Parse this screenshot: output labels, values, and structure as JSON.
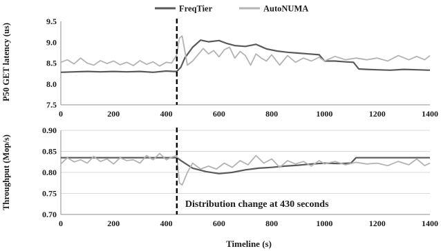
{
  "chart_data": [
    {
      "type": "line",
      "ylabel": "P50 GET latency (us)",
      "xlabel": "",
      "xlim": [
        0,
        1400
      ],
      "ylim": [
        7.5,
        9.5
      ],
      "x_ticks": [
        "0",
        "200",
        "400",
        "600",
        "800",
        "1000",
        "1200",
        "1400"
      ],
      "y_ticks": [
        "7.5",
        "8.0",
        "8.5",
        "9.0",
        "9.5"
      ],
      "grid": false,
      "legend_position": "top",
      "marker_x": 440,
      "series": [
        {
          "name": "FreqTier",
          "color": "#595959",
          "x": [
            0,
            50,
            100,
            150,
            200,
            250,
            300,
            350,
            400,
            430,
            440,
            455,
            470,
            500,
            530,
            560,
            600,
            630,
            660,
            700,
            740,
            780,
            820,
            860,
            900,
            940,
            980,
            1000,
            1040,
            1080,
            1110,
            1130,
            1160,
            1200,
            1250,
            1300,
            1350,
            1400
          ],
          "values": [
            8.28,
            8.29,
            8.3,
            8.29,
            8.3,
            8.29,
            8.3,
            8.28,
            8.31,
            8.3,
            8.3,
            8.4,
            8.62,
            8.88,
            9.05,
            9.01,
            9.04,
            8.97,
            8.92,
            8.9,
            8.95,
            8.84,
            8.79,
            8.76,
            8.74,
            8.72,
            8.7,
            8.55,
            8.55,
            8.53,
            8.52,
            8.36,
            8.35,
            8.34,
            8.33,
            8.35,
            8.34,
            8.33
          ]
        },
        {
          "name": "AutoNUMA",
          "color": "#b3b3b3",
          "x": [
            0,
            25,
            50,
            75,
            100,
            125,
            150,
            175,
            200,
            225,
            250,
            275,
            300,
            325,
            350,
            375,
            400,
            420,
            440,
            450,
            460,
            470,
            480,
            500,
            520,
            540,
            560,
            580,
            600,
            620,
            640,
            660,
            680,
            700,
            720,
            740,
            760,
            780,
            800,
            830,
            860,
            890,
            920,
            950,
            980,
            1000,
            1040,
            1080,
            1120,
            1160,
            1200,
            1240,
            1280,
            1320,
            1350,
            1380,
            1400
          ],
          "values": [
            8.52,
            8.58,
            8.48,
            8.62,
            8.5,
            8.45,
            8.56,
            8.49,
            8.55,
            8.46,
            8.52,
            8.44,
            8.56,
            8.47,
            8.53,
            8.43,
            8.52,
            8.5,
            8.7,
            9.1,
            9.15,
            8.8,
            8.45,
            8.55,
            8.7,
            8.85,
            8.72,
            8.8,
            8.65,
            8.82,
            8.88,
            8.62,
            8.78,
            8.68,
            8.45,
            8.72,
            8.62,
            8.55,
            8.7,
            8.45,
            8.68,
            8.52,
            8.62,
            8.55,
            8.64,
            8.55,
            8.66,
            8.58,
            8.62,
            8.58,
            8.62,
            8.55,
            8.68,
            8.58,
            8.66,
            8.58,
            8.68
          ]
        }
      ]
    },
    {
      "type": "line",
      "ylabel": "Throughput (Mop/s)",
      "xlabel": "Timeline (s)",
      "xlim": [
        0,
        1400
      ],
      "ylim": [
        0.7,
        0.9
      ],
      "x_ticks": [
        "0",
        "200",
        "400",
        "600",
        "800",
        "1000",
        "1200",
        "1400"
      ],
      "y_ticks": [
        "0.70",
        "0.75",
        "0.80",
        "0.85",
        "0.90"
      ],
      "grid": true,
      "marker_x": 440,
      "annotation": "Distribution change at 430 seconds",
      "series": [
        {
          "name": "FreqTier",
          "color": "#595959",
          "x": [
            0,
            100,
            200,
            300,
            400,
            430,
            440,
            460,
            480,
            500,
            550,
            600,
            650,
            700,
            750,
            800,
            850,
            900,
            950,
            1000,
            1050,
            1100,
            1120,
            1150,
            1200,
            1300,
            1400
          ],
          "values": [
            0.835,
            0.835,
            0.835,
            0.835,
            0.835,
            0.835,
            0.835,
            0.826,
            0.818,
            0.81,
            0.802,
            0.797,
            0.8,
            0.806,
            0.81,
            0.812,
            0.815,
            0.817,
            0.82,
            0.822,
            0.821,
            0.822,
            0.835,
            0.835,
            0.835,
            0.835,
            0.835
          ]
        },
        {
          "name": "AutoNUMA",
          "color": "#b3b3b3",
          "x": [
            0,
            25,
            50,
            75,
            100,
            125,
            150,
            175,
            200,
            225,
            250,
            275,
            300,
            325,
            350,
            375,
            400,
            420,
            440,
            450,
            460,
            480,
            500,
            530,
            560,
            590,
            620,
            650,
            680,
            710,
            740,
            770,
            800,
            830,
            860,
            890,
            920,
            950,
            980,
            1000,
            1040,
            1080,
            1120,
            1160,
            1200,
            1240,
            1280,
            1320,
            1350,
            1380,
            1400
          ],
          "values": [
            0.82,
            0.835,
            0.825,
            0.83,
            0.822,
            0.838,
            0.826,
            0.832,
            0.82,
            0.835,
            0.828,
            0.83,
            0.822,
            0.84,
            0.83,
            0.845,
            0.83,
            0.836,
            0.84,
            0.775,
            0.77,
            0.8,
            0.822,
            0.808,
            0.815,
            0.808,
            0.822,
            0.812,
            0.828,
            0.818,
            0.84,
            0.822,
            0.832,
            0.812,
            0.828,
            0.82,
            0.826,
            0.815,
            0.828,
            0.82,
            0.826,
            0.818,
            0.824,
            0.82,
            0.822,
            0.816,
            0.826,
            0.818,
            0.832,
            0.816,
            0.822
          ]
        }
      ]
    }
  ]
}
